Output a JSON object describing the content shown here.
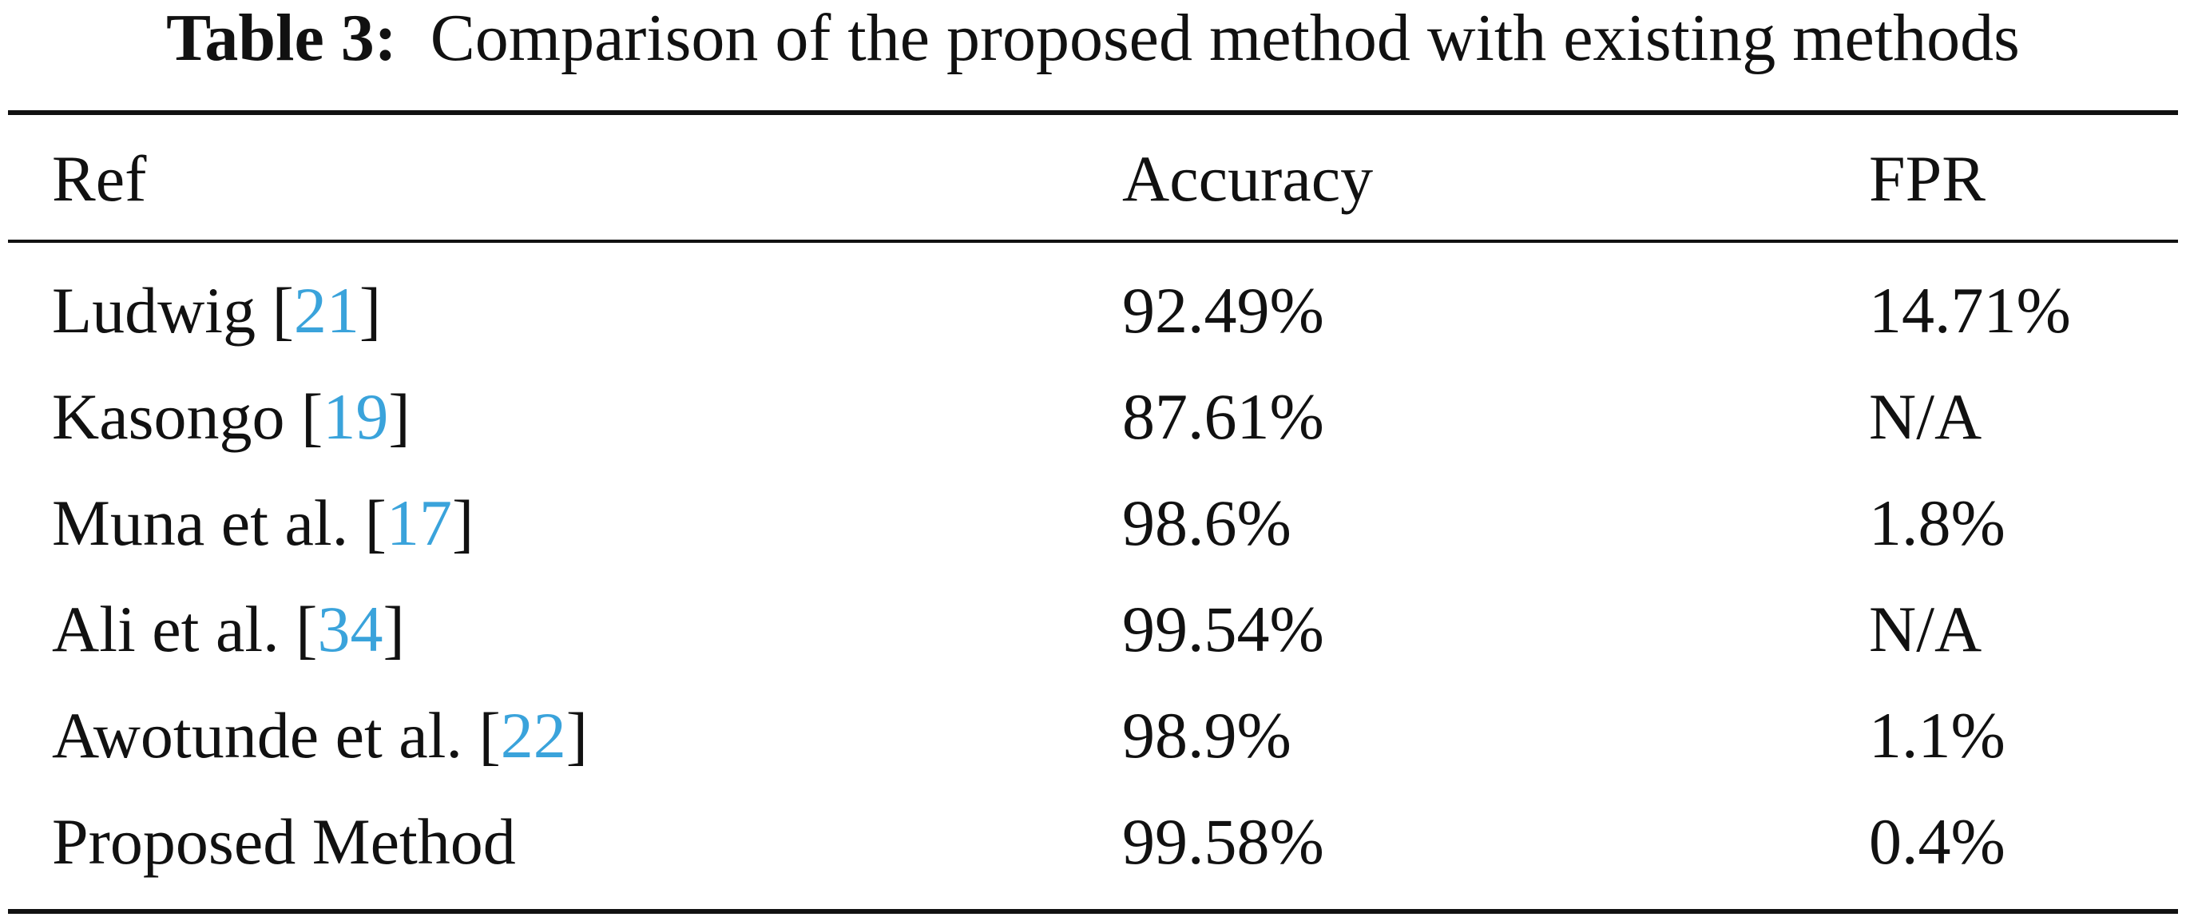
{
  "caption": {
    "label": "Table 3:",
    "text": "Comparison of the proposed method with existing methods"
  },
  "headers": [
    "Ref",
    "Accuracy",
    "FPR"
  ],
  "rows": [
    {
      "ref": "Ludwig",
      "cite": "21",
      "accuracy": "92.49%",
      "fpr": "14.71%"
    },
    {
      "ref": "Kasongo",
      "cite": "19",
      "accuracy": "87.61%",
      "fpr": "N/A"
    },
    {
      "ref": "Muna et al.",
      "cite": "17",
      "accuracy": "98.6%",
      "fpr": "1.8%"
    },
    {
      "ref": "Ali et al.",
      "cite": "34",
      "accuracy": "99.54%",
      "fpr": "N/A"
    },
    {
      "ref": "Awotunde et al.",
      "cite": "22",
      "accuracy": "98.9%",
      "fpr": "1.1%"
    },
    {
      "ref": "Proposed Method",
      "cite": null,
      "accuracy": "99.58%",
      "fpr": "0.4%"
    }
  ],
  "colors": {
    "text": "#111111",
    "citation": "#3aa3db"
  }
}
